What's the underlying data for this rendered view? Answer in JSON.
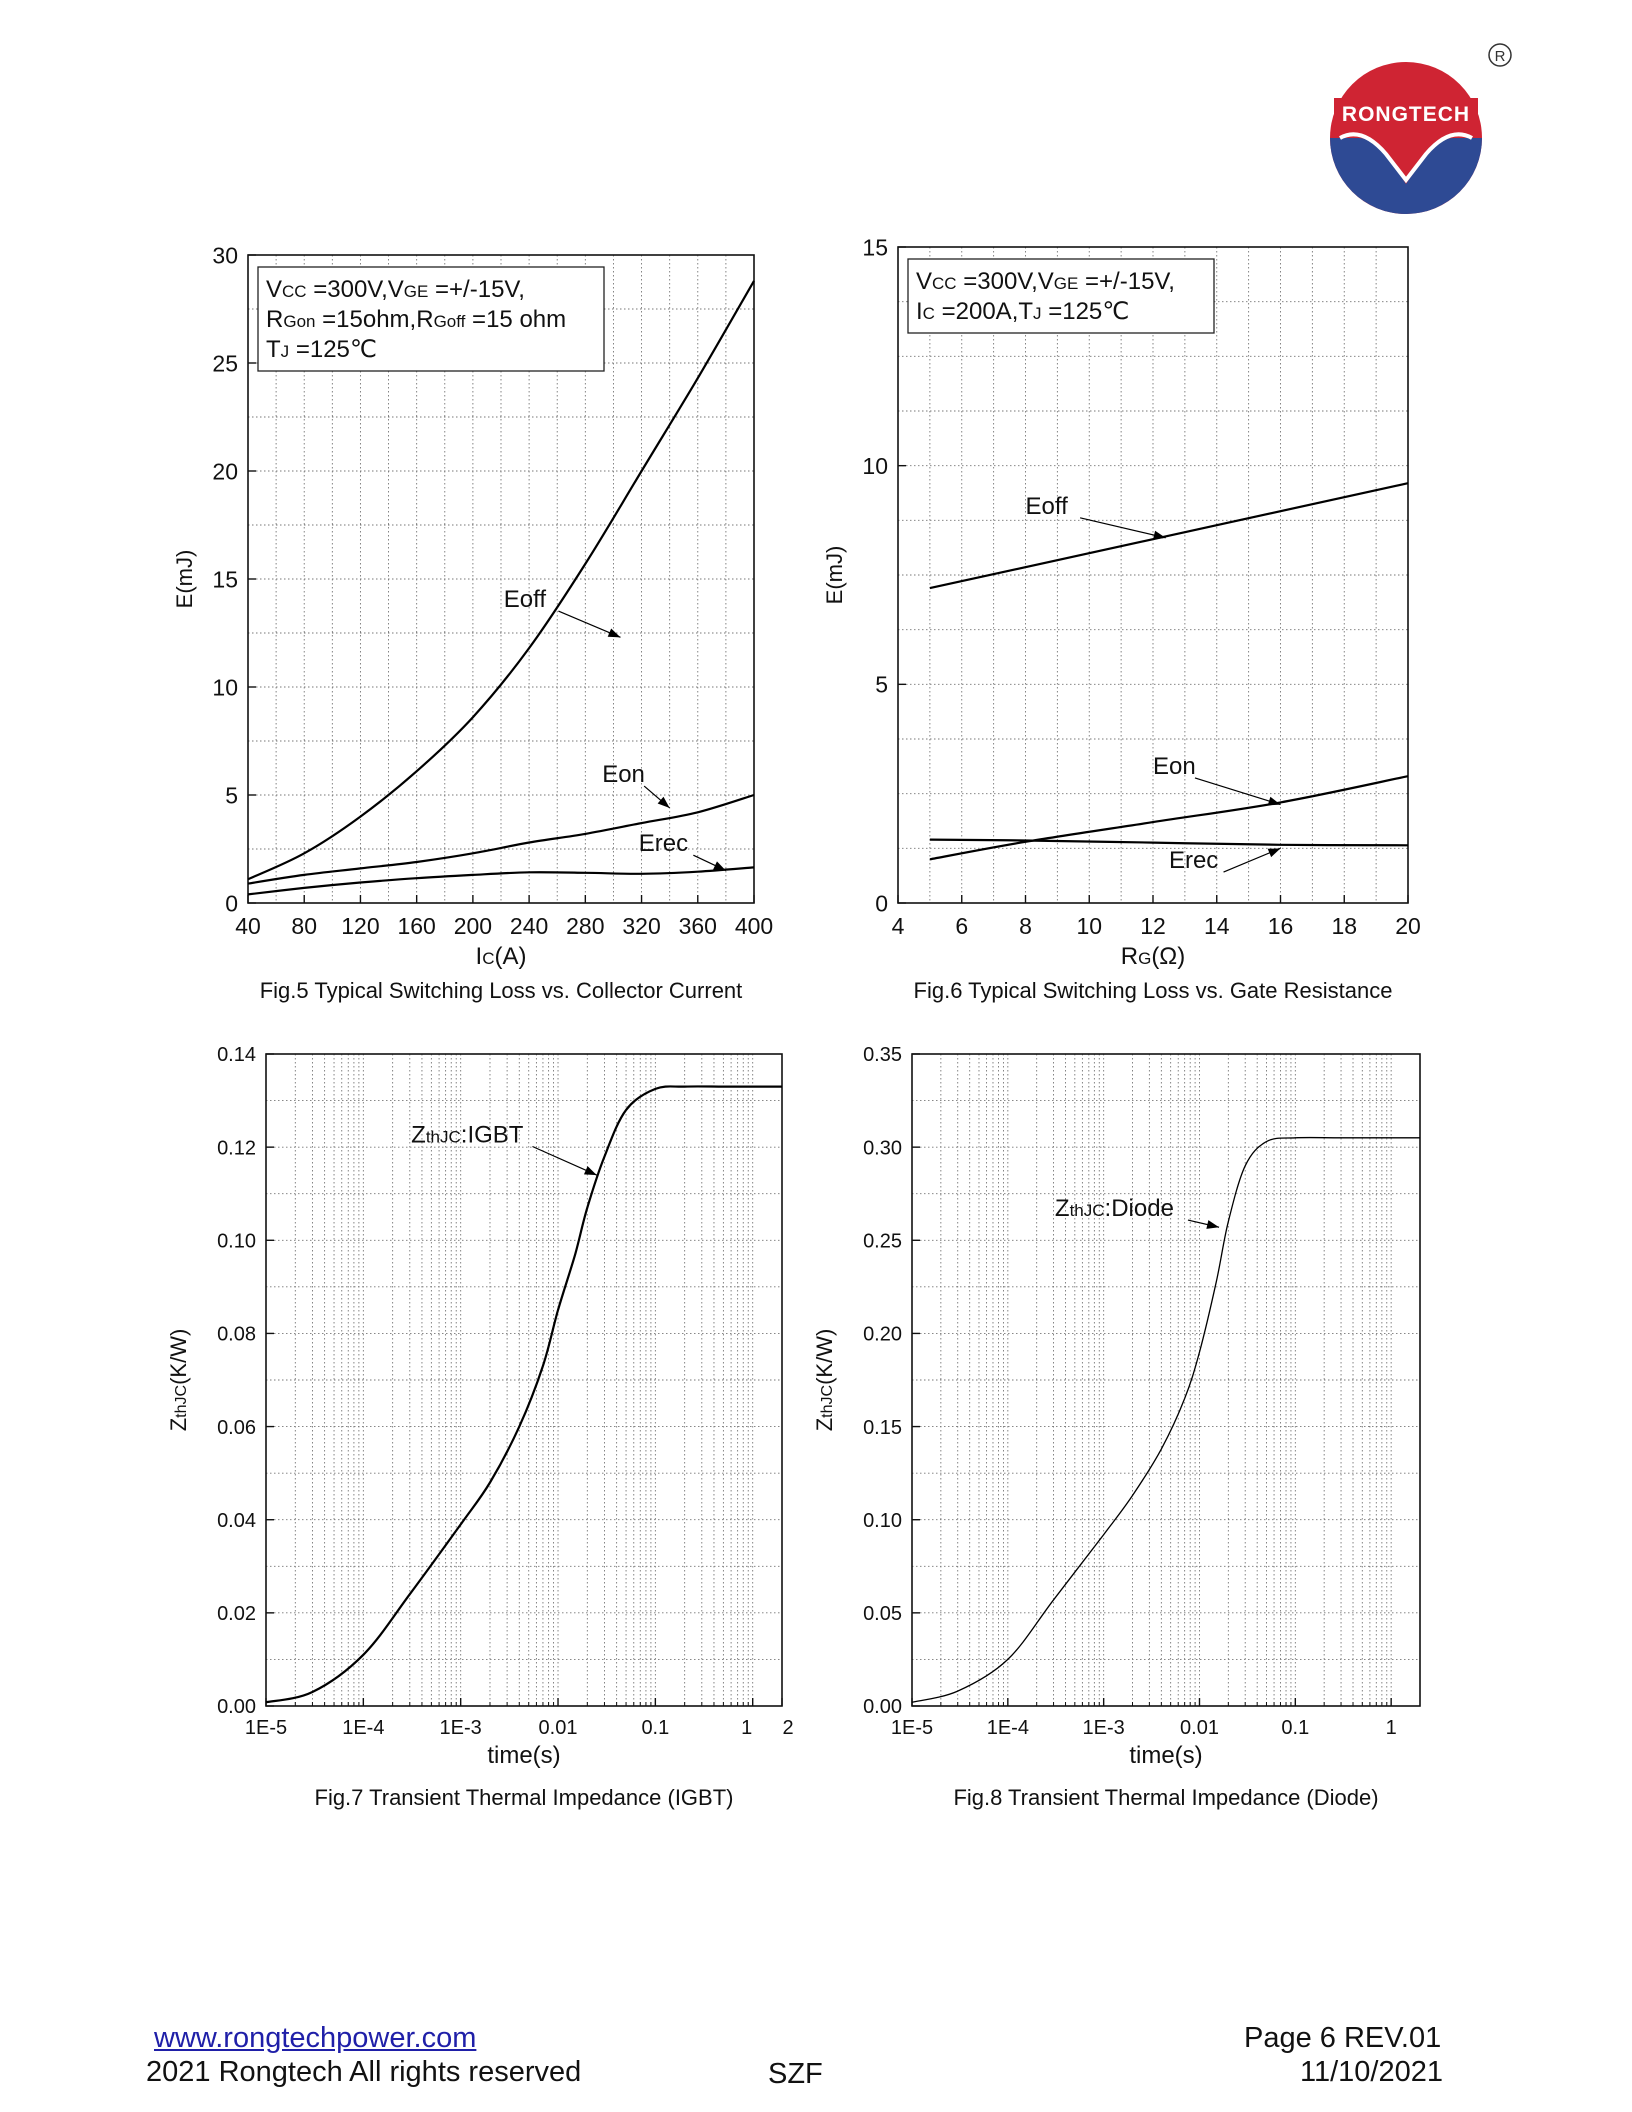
{
  "brand": {
    "name": "RONGTECH",
    "registered": "®",
    "colors": {
      "red": "#cf2433",
      "blue": "#2e4a94"
    }
  },
  "footer": {
    "url": "www.rongtechpower.com",
    "copyright": "2021 Rongtech All rights reserved",
    "author": "SZF",
    "page": "Page 6  REV.01",
    "date": "11/10/2021"
  },
  "chart_data": [
    {
      "id": "fig5",
      "type": "line",
      "title": "Fig.5 Typical Switching Loss vs. Collector Current",
      "xlabel": "IC(A)",
      "ylabel": "E(mJ)",
      "xscale": "linear",
      "xlim": [
        40,
        400
      ],
      "ylim": [
        0,
        30
      ],
      "xticks": [
        40,
        80,
        120,
        160,
        200,
        240,
        280,
        320,
        360,
        400
      ],
      "yticks": [
        0,
        5,
        10,
        15,
        20,
        25,
        30
      ],
      "minor_grid": {
        "x": 20,
        "y": 2.5
      },
      "legend_box": {
        "position": "top-left",
        "lines": [
          "VCC =300V,VGE =+/-15V,",
          "RGon =15ohm,RGoff =15 ohm",
          "TJ =125℃"
        ]
      },
      "series": [
        {
          "name": "Eoff",
          "x": [
            40,
            80,
            120,
            160,
            200,
            240,
            280,
            320,
            360,
            400
          ],
          "values": [
            1.1,
            2.3,
            4.0,
            6.1,
            8.6,
            11.8,
            15.7,
            20.0,
            24.3,
            28.8
          ]
        },
        {
          "name": "Eon",
          "x": [
            40,
            80,
            120,
            160,
            200,
            240,
            280,
            320,
            360,
            400
          ],
          "values": [
            0.9,
            1.3,
            1.6,
            1.9,
            2.3,
            2.8,
            3.2,
            3.7,
            4.2,
            5.0
          ]
        },
        {
          "name": "Erec",
          "x": [
            40,
            80,
            120,
            160,
            200,
            240,
            280,
            320,
            360,
            400
          ],
          "values": [
            0.4,
            0.7,
            0.95,
            1.15,
            1.3,
            1.42,
            1.4,
            1.35,
            1.45,
            1.65
          ]
        }
      ],
      "annotations": [
        {
          "text": "Eoff",
          "target": [
            305,
            12.3
          ],
          "label_at": [
            222,
            13.7
          ]
        },
        {
          "text": "Eon",
          "target": [
            340,
            4.4
          ],
          "label_at": [
            292,
            5.6
          ]
        },
        {
          "text": "Erec",
          "target": [
            380,
            1.5
          ],
          "label_at": [
            318,
            2.4
          ]
        }
      ]
    },
    {
      "id": "fig6",
      "type": "line",
      "title": "Fig.6 Typical Switching Loss vs. Gate Resistance",
      "xlabel": "RG(Ω)",
      "ylabel": "E(mJ)",
      "xscale": "linear",
      "xlim": [
        4,
        20
      ],
      "ylim": [
        0,
        15
      ],
      "xticks": [
        4,
        6,
        8,
        10,
        12,
        14,
        16,
        18,
        20
      ],
      "yticks": [
        0,
        5,
        10,
        15
      ],
      "minor_grid": {
        "x": 1,
        "y": 1.25
      },
      "legend_box": {
        "position": "top-left",
        "lines": [
          "VCC =300V,VGE =+/-15V,",
          "IC =200A,TJ =125℃"
        ]
      },
      "series": [
        {
          "name": "Eoff",
          "x": [
            5,
            20
          ],
          "values": [
            7.2,
            9.6
          ]
        },
        {
          "name": "Eon",
          "x": [
            5,
            8,
            12,
            16,
            20
          ],
          "values": [
            1.0,
            1.4,
            1.85,
            2.3,
            2.9
          ]
        },
        {
          "name": "Erec",
          "x": [
            5,
            8,
            12,
            16,
            20
          ],
          "values": [
            1.45,
            1.43,
            1.38,
            1.33,
            1.32
          ]
        }
      ],
      "annotations": [
        {
          "text": "Eoff",
          "target": [
            12.4,
            8.35
          ],
          "label_at": [
            8.0,
            8.9
          ]
        },
        {
          "text": "Eon",
          "target": [
            16.0,
            2.25
          ],
          "label_at": [
            12.0,
            2.95
          ]
        },
        {
          "text": "Erec",
          "target": [
            16.0,
            1.25
          ],
          "label_at": [
            12.5,
            0.8
          ]
        }
      ]
    },
    {
      "id": "fig7",
      "type": "line",
      "title": "Fig.7 Transient Thermal Impedance (IGBT)",
      "xlabel": "time(s)",
      "ylabel": "ZthJC(K/W)",
      "xscale": "log",
      "xlim": [
        1e-05,
        2
      ],
      "ylim": [
        0,
        0.14
      ],
      "xticks": [
        1e-05,
        0.0001,
        0.001,
        0.01,
        0.1,
        1,
        2
      ],
      "xticklabels": [
        "1E-5",
        "1E-4",
        "1E-3",
        "0.01",
        "0.1",
        "1",
        "2"
      ],
      "yticks": [
        0,
        0.02,
        0.04,
        0.06,
        0.08,
        0.1,
        0.12,
        0.14
      ],
      "yticklabels": [
        "0.00",
        "0.02",
        "0.04",
        "0.06",
        "0.08",
        "0.10",
        "0.12",
        "0.14"
      ],
      "minor_grid": {
        "y": 0.01
      },
      "series": [
        {
          "name": "ZthJC:IGBT",
          "x": [
            1e-05,
            3e-05,
            0.0001,
            0.0003,
            0.001,
            0.002,
            0.004,
            0.007,
            0.01,
            0.015,
            0.02,
            0.03,
            0.05,
            0.1,
            0.2,
            0.5,
            1,
            2
          ],
          "values": [
            0.0008,
            0.003,
            0.011,
            0.024,
            0.039,
            0.048,
            0.06,
            0.073,
            0.085,
            0.097,
            0.107,
            0.118,
            0.128,
            0.1325,
            0.133,
            0.133,
            0.133,
            0.133
          ]
        }
      ],
      "annotations": [
        {
          "text": "ZthJC:IGBT",
          "target": [
            0.025,
            0.114
          ],
          "label_at": [
            0.00031,
            0.121
          ]
        }
      ]
    },
    {
      "id": "fig8",
      "type": "line",
      "title": "Fig.8 Transient Thermal Impedance (Diode)",
      "xlabel": "time(s)",
      "ylabel": "ZthJC(K/W)",
      "xscale": "log",
      "xlim": [
        1e-05,
        2
      ],
      "ylim": [
        0,
        0.35
      ],
      "xticks": [
        1e-05,
        0.0001,
        0.001,
        0.01,
        0.1,
        1
      ],
      "xticklabels": [
        "1E-5",
        "1E-4",
        "1E-3",
        "0.01",
        "0.1",
        "1"
      ],
      "yticks": [
        0,
        0.05,
        0.1,
        0.15,
        0.2,
        0.25,
        0.3,
        0.35
      ],
      "yticklabels": [
        "0.00",
        "0.05",
        "0.10",
        "0.15",
        "0.20",
        "0.25",
        "0.30",
        "0.35"
      ],
      "minor_grid": {
        "y": 0.025
      },
      "series": [
        {
          "name": "ZthJC:Diode",
          "x": [
            1e-05,
            3e-05,
            0.0001,
            0.0003,
            0.001,
            0.002,
            0.004,
            0.007,
            0.01,
            0.015,
            0.02,
            0.03,
            0.05,
            0.1,
            0.3,
            1,
            2
          ],
          "values": [
            0.002,
            0.008,
            0.025,
            0.057,
            0.092,
            0.113,
            0.138,
            0.165,
            0.19,
            0.228,
            0.26,
            0.29,
            0.303,
            0.305,
            0.305,
            0.305,
            0.305
          ]
        }
      ],
      "annotations": [
        {
          "text": "ZthJC:Diode",
          "target": [
            0.016,
            0.257
          ],
          "label_at": [
            0.00031,
            0.263
          ]
        }
      ]
    }
  ]
}
